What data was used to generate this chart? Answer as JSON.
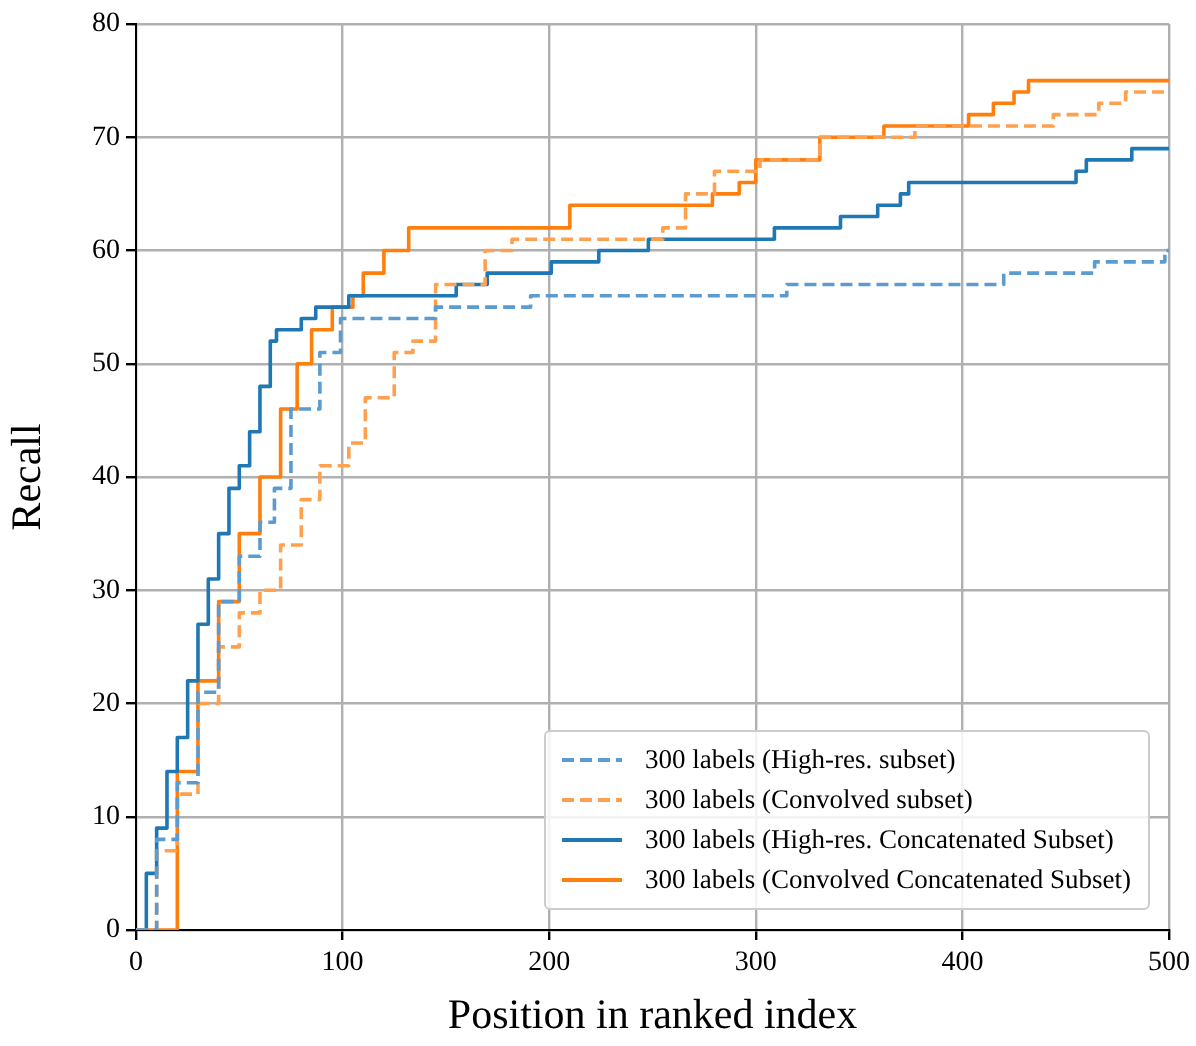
{
  "chart_data": {
    "type": "step",
    "xlabel": "Position in ranked index",
    "ylabel": "Recall",
    "xlim": [
      0,
      500
    ],
    "ylim": [
      0,
      80
    ],
    "xticks": [
      0,
      100,
      200,
      300,
      400,
      500
    ],
    "yticks": [
      0,
      10,
      20,
      30,
      40,
      50,
      60,
      70,
      80
    ],
    "grid": true,
    "legend": "bottom right",
    "marker": "none",
    "series": [
      {
        "name": "300 labels (High-res. subset)",
        "color": "#5b9bd0",
        "line_style": "dashed",
        "x": [
          0,
          10,
          20,
          30,
          40,
          50,
          60,
          67,
          75,
          89,
          99,
          145,
          191,
          315,
          420,
          464,
          498,
          500
        ],
        "values": [
          0,
          8,
          13,
          21,
          29,
          33,
          36,
          39,
          46,
          51,
          54,
          55,
          56,
          57,
          58,
          59,
          60,
          60
        ]
      },
      {
        "name": "300 labels (Convolved subset)",
        "color": "#ffa04f",
        "line_style": "dashed",
        "x": [
          0,
          10,
          20,
          30,
          40,
          50,
          60,
          70,
          80,
          89,
          103,
          111,
          125,
          134,
          145,
          169,
          182,
          255,
          266,
          280,
          302,
          331,
          377,
          444,
          466,
          479,
          500
        ],
        "values": [
          0,
          7,
          12,
          20,
          25,
          28,
          30,
          34,
          38,
          41,
          43,
          47,
          51,
          52,
          57,
          60,
          61,
          62,
          65,
          67,
          68,
          70,
          71,
          72,
          73,
          74,
          74
        ]
      },
      {
        "name": "300 labels (High-res. Concatenated Subset)",
        "color": "#1f77b4",
        "line_style": "solid",
        "x": [
          0,
          5,
          10,
          15,
          20,
          25,
          30,
          35,
          40,
          45,
          50,
          55,
          60,
          65,
          68,
          80,
          87,
          103,
          155,
          170,
          201,
          224,
          248,
          309,
          341,
          359,
          370,
          374,
          455,
          460,
          482,
          500
        ],
        "values": [
          0,
          5,
          9,
          14,
          17,
          22,
          27,
          31,
          35,
          39,
          41,
          44,
          48,
          52,
          53,
          54,
          55,
          56,
          57,
          58,
          59,
          60,
          61,
          62,
          63,
          64,
          65,
          66,
          67,
          68,
          69,
          69
        ]
      },
      {
        "name": "300 labels (Convolved Concatenated Subset)",
        "color": "#ff7f0e",
        "line_style": "solid",
        "x": [
          0,
          20,
          30,
          40,
          50,
          60,
          70,
          78,
          85,
          95,
          105,
          110,
          120,
          132,
          210,
          279,
          292,
          300,
          331,
          362,
          403,
          415,
          425,
          432,
          500
        ],
        "values": [
          0,
          14,
          22,
          29,
          35,
          40,
          46,
          50,
          53,
          55,
          56,
          58,
          60,
          62,
          64,
          65,
          66,
          68,
          70,
          71,
          72,
          73,
          74,
          75,
          75
        ]
      }
    ]
  }
}
